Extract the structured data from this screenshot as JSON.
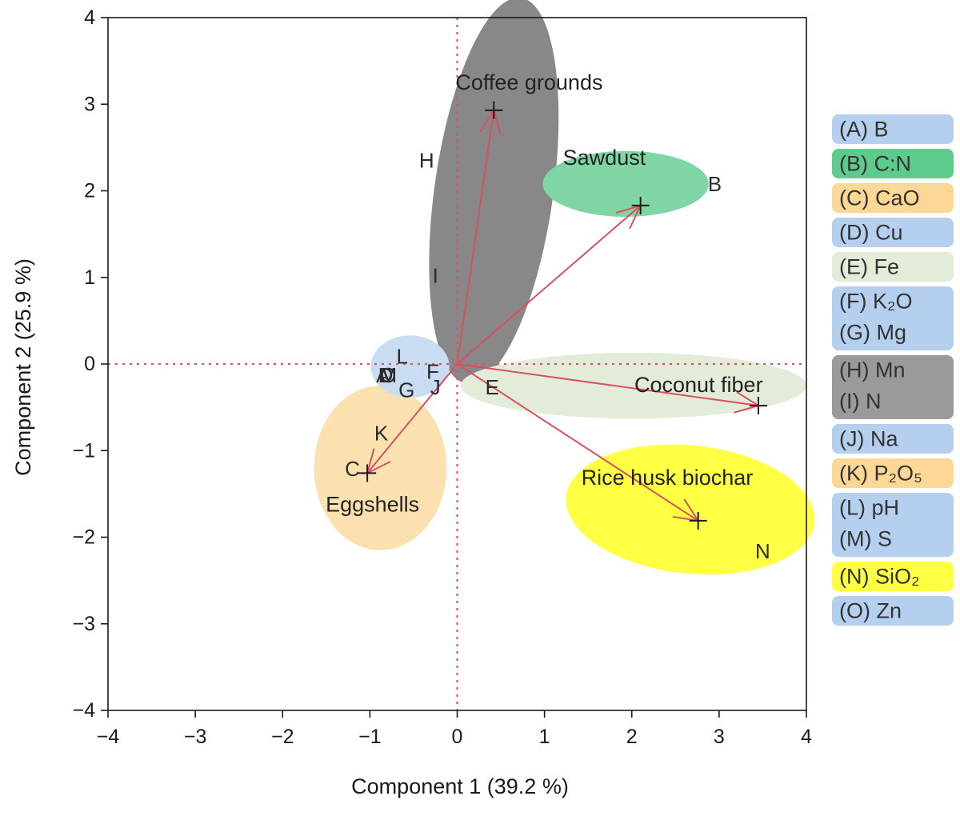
{
  "chart_data": {
    "type": "scatter",
    "xlabel": "Component 1  (39.2 %)",
    "ylabel": "Component 2  (25.9 %)",
    "xlim": [
      -4,
      4
    ],
    "ylim": [
      -4,
      4
    ],
    "xticks": [
      -4,
      -3,
      -2,
      -1,
      0,
      1,
      2,
      3,
      4
    ],
    "yticks": [
      -4,
      -3,
      -2,
      -1,
      0,
      1,
      2,
      3,
      4
    ],
    "grid": false,
    "reference_lines": {
      "x": 0,
      "y": 0,
      "style": "dotted",
      "color": "#e0526a"
    },
    "samples": [
      {
        "name": "Coffee grounds",
        "x": 0.42,
        "y": 2.93
      },
      {
        "name": "Sawdust",
        "x": 2.1,
        "y": 1.83
      },
      {
        "name": "Coconut fiber",
        "x": 3.45,
        "y": -0.48
      },
      {
        "name": "Rice husk biochar",
        "x": 2.76,
        "y": -1.81
      },
      {
        "name": "Eggshells",
        "x": -1.03,
        "y": -1.26
      }
    ],
    "variables": [
      {
        "letter": "A",
        "x": -0.85,
        "y": -0.13
      },
      {
        "letter": "B",
        "x": 2.95,
        "y": 2.08
      },
      {
        "letter": "C",
        "x": -1.2,
        "y": -1.21
      },
      {
        "letter": "D",
        "x": -0.82,
        "y": -0.13
      },
      {
        "letter": "E",
        "x": 0.4,
        "y": -0.27
      },
      {
        "letter": "F",
        "x": -0.28,
        "y": -0.09
      },
      {
        "letter": "G",
        "x": -0.58,
        "y": -0.3
      },
      {
        "letter": "H",
        "x": -0.35,
        "y": 2.35
      },
      {
        "letter": "I",
        "x": -0.25,
        "y": 1.02
      },
      {
        "letter": "J",
        "x": -0.25,
        "y": -0.27
      },
      {
        "letter": "K",
        "x": -0.87,
        "y": -0.8
      },
      {
        "letter": "L",
        "x": -0.63,
        "y": 0.09
      },
      {
        "letter": "M",
        "x": -0.79,
        "y": -0.13
      },
      {
        "letter": "N",
        "x": 3.5,
        "y": -2.16
      },
      {
        "letter": "O",
        "x": -0.79,
        "y": -0.13
      }
    ],
    "groups": [
      {
        "cx": 0.42,
        "cy": 2.0,
        "rx": 0.68,
        "ry": 2.25,
        "angle": 8,
        "color": "#888888"
      },
      {
        "cx": 1.93,
        "cy": 2.08,
        "rx": 0.95,
        "ry": 0.38,
        "angle": 0,
        "color": "#7fd6a4"
      },
      {
        "cx": 2.02,
        "cy": -0.25,
        "rx": 1.98,
        "ry": 0.38,
        "angle": 0,
        "color": "#e3ecd8"
      },
      {
        "cx": 2.67,
        "cy": -1.68,
        "rx": 1.43,
        "ry": 0.74,
        "angle": 6,
        "color": "#ffff44"
      },
      {
        "cx": -0.88,
        "cy": -1.2,
        "rx": 0.76,
        "ry": 0.95,
        "angle": 0,
        "color": "#fce1b0"
      },
      {
        "cx": -0.54,
        "cy": -0.03,
        "rx": 0.45,
        "ry": 0.36,
        "angle": 0,
        "color": "#c8dcf2"
      }
    ],
    "legend": {
      "placement": "right",
      "rows": [
        {
          "text": "(A) B",
          "color": "#b4d0ee",
          "span": 1
        },
        {
          "text": "(B) C:N",
          "color": "#5ccb8c",
          "span": 1
        },
        {
          "text": "(C) CaO",
          "color": "#fcd795",
          "span": 1
        },
        {
          "text": "(D) Cu",
          "color": "#b4d0ee",
          "span": 1
        },
        {
          "text": "(E) Fe",
          "color": "#e3ecd8",
          "span": 1
        },
        {
          "text": "(F) K₂O",
          "color": "#b4d0ee",
          "span": 2,
          "second": "(G) Mg"
        },
        {
          "text": "(H) Mn",
          "color": "#9a9a9a",
          "span": 2,
          "second": "(I) N"
        },
        {
          "text": "(J) Na",
          "color": "#b4d0ee",
          "span": 1
        },
        {
          "text": "(K) P₂O₅",
          "color": "#fcd795",
          "span": 1
        },
        {
          "text": "(L) pH",
          "color": "#b4d0ee",
          "span": 2,
          "second": "(M) S"
        },
        {
          "text": "(N) SiO₂",
          "color": "#ffff44",
          "span": 1
        },
        {
          "text": "(O) Zn",
          "color": "#b4d0ee",
          "span": 1
        }
      ]
    },
    "colors": {
      "arrow": "#d9505e",
      "marker": "#1a1a1a",
      "axis": "#1a1a1a"
    }
  }
}
